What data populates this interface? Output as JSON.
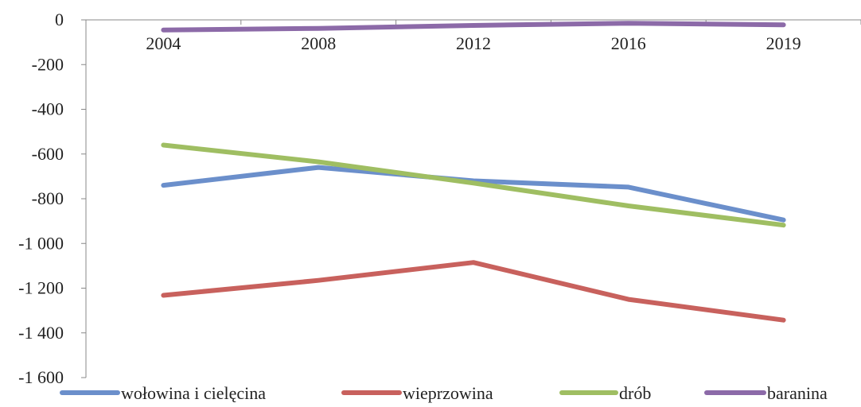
{
  "chart_data": {
    "type": "line",
    "title": "",
    "xlabel": "",
    "ylabel": "",
    "categories": [
      "2004",
      "2008",
      "2012",
      "2016",
      "2019"
    ],
    "ylim": [
      -1600,
      0
    ],
    "yticks": [
      0,
      -200,
      -400,
      -600,
      -800,
      -1000,
      -1200,
      -1400,
      -1600
    ],
    "ytick_labels": [
      "0",
      "-200",
      "-400",
      "-600",
      "-800",
      "-1 000",
      "-1 200",
      "-1 400",
      "-1 600"
    ],
    "grid": false,
    "legend_position": "bottom",
    "series": [
      {
        "name": "wołowina i cielęcina",
        "color": "#6B8FCB",
        "values": [
          -740,
          -660,
          -720,
          -748,
          -895
        ]
      },
      {
        "name": "wieprzowina",
        "color": "#C8615D",
        "values": [
          -1232,
          -1165,
          -1085,
          -1250,
          -1343
        ]
      },
      {
        "name": "drób",
        "color": "#9FBE62",
        "values": [
          -560,
          -635,
          -730,
          -832,
          -918
        ]
      },
      {
        "name": "baranina",
        "color": "#8C6AA8",
        "values": [
          -45,
          -38,
          -25,
          -15,
          -22
        ]
      }
    ]
  }
}
